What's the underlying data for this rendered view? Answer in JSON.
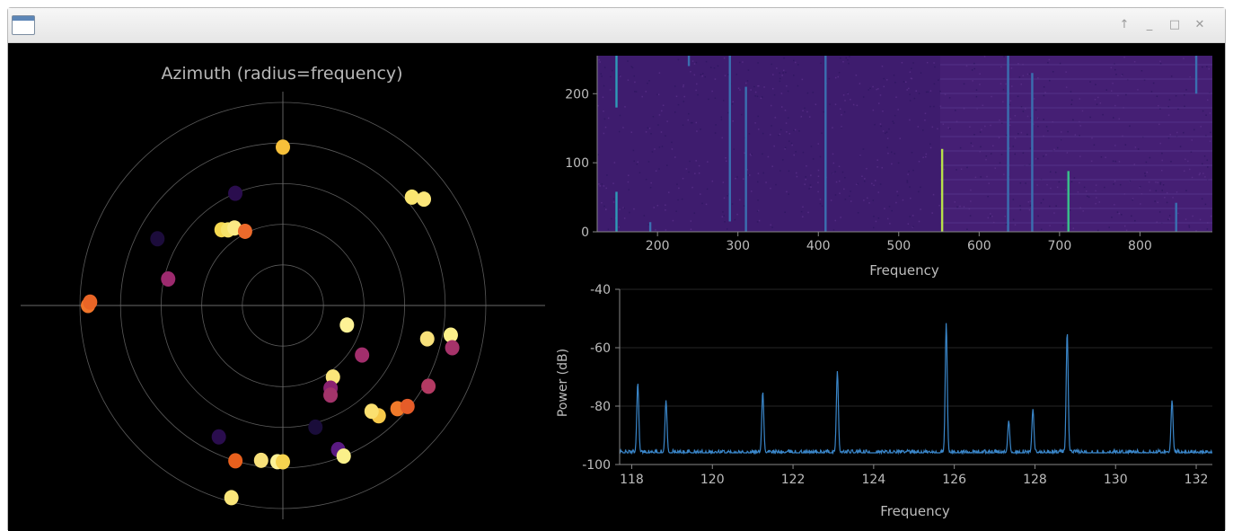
{
  "window": {
    "icon": "app-window-icon",
    "controls": [
      {
        "name": "keep-above-icon",
        "glyph": "↑"
      },
      {
        "name": "minimize-icon",
        "glyph": "_"
      },
      {
        "name": "maximize-icon",
        "glyph": "□"
      },
      {
        "name": "close-icon",
        "glyph": "✕"
      }
    ]
  },
  "chart_data": [
    {
      "type": "scatter",
      "projection": "polar",
      "title": "Azimuth (radius=frequency)",
      "grid": true,
      "colormap": "inferno",
      "points": [
        {
          "angle_deg": 90,
          "r": 0.78,
          "color": "#f7c03a"
        },
        {
          "angle_deg": 113,
          "r": 0.6,
          "color": "#2a0d4e"
        },
        {
          "angle_deg": 129,
          "r": 0.48,
          "color": "#f5d850"
        },
        {
          "angle_deg": 126,
          "r": 0.46,
          "color": "#f6e36a"
        },
        {
          "angle_deg": 122,
          "r": 0.45,
          "color": "#fbea85"
        },
        {
          "angle_deg": 117,
          "r": 0.41,
          "color": "#ec6a2b"
        },
        {
          "angle_deg": 152,
          "r": 0.7,
          "color": "#1c0c3b"
        },
        {
          "angle_deg": 167,
          "r": 0.58,
          "color": "#9c2a6e"
        },
        {
          "angle_deg": 180,
          "r": 0.96,
          "color": "#f0752a"
        },
        {
          "angle_deg": 179,
          "r": 0.95,
          "color": "#e96526"
        },
        {
          "angle_deg": 40,
          "r": 0.83,
          "color": "#fbe670"
        },
        {
          "angle_deg": 37,
          "r": 0.87,
          "color": "#fbe67a"
        },
        {
          "angle_deg": -17,
          "r": 0.33,
          "color": "#fdf296"
        },
        {
          "angle_deg": -13,
          "r": 0.73,
          "color": "#f7e07a"
        },
        {
          "angle_deg": -10,
          "r": 0.84,
          "color": "#fbf08a"
        },
        {
          "angle_deg": -14,
          "r": 0.86,
          "color": "#a6336a"
        },
        {
          "angle_deg": -29,
          "r": 0.82,
          "color": "#b33a63"
        },
        {
          "angle_deg": -32,
          "r": 0.46,
          "color": "#a22e6c"
        },
        {
          "angle_deg": -55,
          "r": 0.43,
          "color": "#fbe67a"
        },
        {
          "angle_deg": -60,
          "r": 0.47,
          "color": "#8a2271"
        },
        {
          "angle_deg": -62,
          "r": 0.5,
          "color": "#a2346a"
        },
        {
          "angle_deg": -42,
          "r": 0.76,
          "color": "#ef7a2a"
        },
        {
          "angle_deg": -39,
          "r": 0.79,
          "color": "#e55c29"
        },
        {
          "angle_deg": -49,
          "r": 0.72,
          "color": "#f7c94a"
        },
        {
          "angle_deg": -50,
          "r": 0.68,
          "color": "#fbe070"
        },
        {
          "angle_deg": -75,
          "r": 0.62,
          "color": "#1a0d3a"
        },
        {
          "angle_deg": -69,
          "r": 0.76,
          "color": "#5a1a82"
        },
        {
          "angle_deg": -68,
          "r": 0.8,
          "color": "#fbf08a"
        },
        {
          "angle_deg": -92,
          "r": 0.77,
          "color": "#fdf296"
        },
        {
          "angle_deg": -90,
          "r": 0.77,
          "color": "#f6d34f"
        },
        {
          "angle_deg": -98,
          "r": 0.77,
          "color": "#f7e07a"
        },
        {
          "angle_deg": -107,
          "r": 0.8,
          "color": "#e8601d"
        },
        {
          "angle_deg": -116,
          "r": 0.72,
          "color": "#2a0d4e"
        },
        {
          "angle_deg": -105,
          "r": 0.98,
          "color": "#fbe67a"
        }
      ]
    },
    {
      "type": "heatmap",
      "title": "",
      "xlabel": "Frequency",
      "ylabel": "",
      "xlim": [
        125,
        890
      ],
      "ylim": [
        0,
        255
      ],
      "x_ticks": [
        "200",
        "300",
        "400",
        "500",
        "600",
        "700",
        "800"
      ],
      "y_ticks": [
        "0",
        "100",
        "200"
      ],
      "colormap": "viridis",
      "vertical_lines": [
        {
          "x": 149,
          "y_start": 180,
          "y_end": 255,
          "intensity": 0.55
        },
        {
          "x": 149,
          "y_start": 0,
          "y_end": 58,
          "intensity": 0.55
        },
        {
          "x": 191,
          "y_start": 0,
          "y_end": 14,
          "intensity": 0.35
        },
        {
          "x": 239,
          "y_start": 240,
          "y_end": 255,
          "intensity": 0.3
        },
        {
          "x": 290,
          "y_start": 15,
          "y_end": 255,
          "intensity": 0.3
        },
        {
          "x": 310,
          "y_start": 0,
          "y_end": 210,
          "intensity": 0.35
        },
        {
          "x": 409,
          "y_start": 0,
          "y_end": 255,
          "intensity": 0.4
        },
        {
          "x": 554,
          "y_start": 0,
          "y_end": 120,
          "intensity": 0.85
        },
        {
          "x": 636,
          "y_start": 0,
          "y_end": 255,
          "intensity": 0.35
        },
        {
          "x": 666,
          "y_start": 0,
          "y_end": 230,
          "intensity": 0.3
        },
        {
          "x": 711,
          "y_start": 0,
          "y_end": 88,
          "intensity": 0.7
        },
        {
          "x": 845,
          "y_start": 0,
          "y_end": 42,
          "intensity": 0.3
        },
        {
          "x": 870,
          "y_start": 200,
          "y_end": 255,
          "intensity": 0.4
        }
      ]
    },
    {
      "type": "line",
      "title": "",
      "xlabel": "Frequency",
      "ylabel": "Power (dB)",
      "xlim": [
        117.7,
        132.4
      ],
      "ylim": [
        -100,
        -40
      ],
      "x_ticks": [
        "118",
        "120",
        "122",
        "124",
        "126",
        "128",
        "130",
        "132"
      ],
      "y_ticks": [
        "-40",
        "-60",
        "-80",
        "-100"
      ],
      "noise_floor": -96,
      "line_color": "#3a86c9",
      "peaks": [
        {
          "x": 118.15,
          "y": -72
        },
        {
          "x": 118.85,
          "y": -78
        },
        {
          "x": 121.25,
          "y": -75
        },
        {
          "x": 123.1,
          "y": -68
        },
        {
          "x": 125.8,
          "y": -51.5
        },
        {
          "x": 127.35,
          "y": -85
        },
        {
          "x": 127.95,
          "y": -81
        },
        {
          "x": 128.8,
          "y": -54.5
        },
        {
          "x": 131.4,
          "y": -78
        }
      ]
    }
  ]
}
